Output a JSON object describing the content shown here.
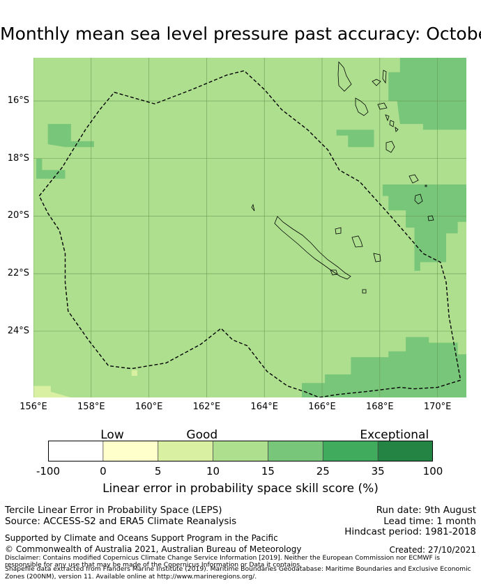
{
  "title": "Monthly mean sea level pressure past accuracy: October",
  "map": {
    "lon_range": [
      156,
      171
    ],
    "lat_range": [
      -26.3,
      -14.5
    ],
    "lat_ticks": [
      {
        "v": -16,
        "label": "16°S"
      },
      {
        "v": -18,
        "label": "18°S"
      },
      {
        "v": -20,
        "label": "20°S"
      },
      {
        "v": -22,
        "label": "22°S"
      },
      {
        "v": -24,
        "label": "24°S"
      }
    ],
    "lon_ticks": [
      {
        "v": 156,
        "label": "156°E"
      },
      {
        "v": 158,
        "label": "158°E"
      },
      {
        "v": 160,
        "label": "160°E"
      },
      {
        "v": 162,
        "label": "162°E"
      },
      {
        "v": 164,
        "label": "164°E"
      },
      {
        "v": 166,
        "label": "166°E"
      },
      {
        "v": 168,
        "label": "168°E"
      },
      {
        "v": 170,
        "label": "170°E"
      }
    ],
    "colors": {
      "background_15_25": "#addf8e",
      "zone_25_35": "#78c679",
      "zone_5_10": "#d9f0a3",
      "gridline": "#6a9a55",
      "coast": "#000000"
    },
    "regions_25_35": [
      [
        [
          168.7,
          -14.5
        ],
        [
          171,
          -14.5
        ],
        [
          171,
          -17.0
        ],
        [
          169.5,
          -17.0
        ],
        [
          169.5,
          -16.8
        ],
        [
          168.7,
          -16.8
        ],
        [
          168.6,
          -16.0
        ],
        [
          168.3,
          -16.0
        ],
        [
          168.3,
          -15.0
        ],
        [
          168.7,
          -15.0
        ]
      ],
      [
        [
          166.5,
          -17.0
        ],
        [
          167.8,
          -17.0
        ],
        [
          167.8,
          -17.6
        ],
        [
          166.9,
          -17.6
        ],
        [
          166.9,
          -17.2
        ],
        [
          166.5,
          -17.2
        ]
      ],
      [
        [
          168.1,
          -18.9
        ],
        [
          171,
          -18.9
        ],
        [
          171,
          -20.2
        ],
        [
          170.7,
          -20.2
        ],
        [
          170.7,
          -20.6
        ],
        [
          170.3,
          -20.6
        ],
        [
          170.3,
          -21.6
        ],
        [
          169.4,
          -21.6
        ],
        [
          169.4,
          -21.9
        ],
        [
          169.2,
          -21.9
        ],
        [
          169.2,
          -20.4
        ],
        [
          168.9,
          -20.4
        ],
        [
          168.9,
          -19.8
        ],
        [
          168.3,
          -19.8
        ],
        [
          168.3,
          -19.3
        ],
        [
          168.1,
          -19.3
        ]
      ],
      [
        [
          167.6,
          -24.9
        ],
        [
          168.3,
          -24.9
        ],
        [
          168.3,
          -24.7
        ],
        [
          168.9,
          -24.7
        ],
        [
          168.9,
          -24.2
        ],
        [
          169.7,
          -24.2
        ],
        [
          169.7,
          -24.4
        ],
        [
          170.7,
          -24.4
        ],
        [
          170.7,
          -24.8
        ],
        [
          171,
          -24.8
        ],
        [
          171,
          -26.3
        ],
        [
          165.3,
          -26.3
        ],
        [
          165.3,
          -25.8
        ],
        [
          166.1,
          -25.8
        ],
        [
          166.1,
          -25.5
        ],
        [
          167.0,
          -25.5
        ],
        [
          167.0,
          -24.9
        ]
      ],
      [
        [
          156.5,
          -16.8
        ],
        [
          157.3,
          -16.8
        ],
        [
          157.3,
          -17.4
        ],
        [
          158.1,
          -17.4
        ],
        [
          158.1,
          -17.6
        ],
        [
          157.1,
          -17.6
        ],
        [
          156.5,
          -17.5
        ]
      ],
      [
        [
          156.1,
          -18.0
        ],
        [
          156.3,
          -18.0
        ],
        [
          156.3,
          -18.4
        ],
        [
          157.1,
          -18.4
        ],
        [
          157.1,
          -18.7
        ],
        [
          156.1,
          -18.7
        ]
      ]
    ],
    "regions_5_10": [
      [
        [
          156,
          -25.9
        ],
        [
          156.6,
          -25.9
        ],
        [
          156.6,
          -26.1
        ],
        [
          157.3,
          -26.3
        ],
        [
          156,
          -26.3
        ]
      ],
      [
        [
          159.4,
          -25.35
        ],
        [
          159.6,
          -25.35
        ],
        [
          159.6,
          -25.55
        ],
        [
          159.4,
          -25.55
        ]
      ]
    ],
    "boundary": [
      [
        156.2,
        -19.3
      ],
      [
        157.0,
        -18.3
      ],
      [
        157.8,
        -17.0
      ],
      [
        158.3,
        -16.3
      ],
      [
        158.8,
        -15.7
      ],
      [
        160.2,
        -16.1
      ],
      [
        161.5,
        -15.6
      ],
      [
        162.7,
        -15.1
      ],
      [
        163.3,
        -14.95
      ],
      [
        164.0,
        -15.6
      ],
      [
        164.6,
        -16.3
      ],
      [
        165.5,
        -17.0
      ],
      [
        166.2,
        -17.7
      ],
      [
        166.6,
        -18.4
      ],
      [
        167.3,
        -18.8
      ],
      [
        168.2,
        -19.8
      ],
      [
        168.9,
        -20.6
      ],
      [
        169.5,
        -21.3
      ],
      [
        170.1,
        -21.6
      ],
      [
        170.3,
        -22.3
      ],
      [
        170.4,
        -23.5
      ],
      [
        170.6,
        -24.6
      ],
      [
        170.8,
        -25.7
      ],
      [
        170.0,
        -25.95
      ],
      [
        169.2,
        -26.0
      ],
      [
        168.7,
        -25.95
      ],
      [
        167.5,
        -26.1
      ],
      [
        166.5,
        -26.2
      ],
      [
        165.9,
        -26.3
      ],
      [
        165.4,
        -26.1
      ],
      [
        164.8,
        -25.9
      ],
      [
        164.1,
        -25.4
      ],
      [
        163.4,
        -24.5
      ],
      [
        162.9,
        -24.3
      ],
      [
        162.5,
        -23.9
      ],
      [
        161.8,
        -24.45
      ],
      [
        160.6,
        -25.1
      ],
      [
        159.4,
        -25.3
      ],
      [
        158.6,
        -25.2
      ],
      [
        157.9,
        -24.3
      ],
      [
        157.2,
        -23.3
      ],
      [
        157.1,
        -22.3
      ],
      [
        157.1,
        -21.3
      ],
      [
        156.9,
        -20.5
      ],
      [
        156.5,
        -19.9
      ],
      [
        156.2,
        -19.3
      ]
    ]
  },
  "colorbar": {
    "categories": [
      {
        "label": "Low",
        "at": 0.5
      },
      {
        "label": "Good",
        "at": 1.2
      },
      {
        "label": "Exceptional",
        "at": 2.7
      }
    ],
    "segments": [
      {
        "from": -100,
        "to": 0,
        "color": "#ffffff"
      },
      {
        "from": 0,
        "to": 5,
        "color": "#ffffcc"
      },
      {
        "from": 5,
        "to": 10,
        "color": "#d9f0a3"
      },
      {
        "from": 10,
        "to": 15,
        "color": "#addf8e"
      },
      {
        "from": 15,
        "to": 25,
        "color": "#78c679"
      },
      {
        "from": 25,
        "to": 35,
        "color": "#41ab5d"
      },
      {
        "from": 35,
        "to": 100,
        "color": "#238443"
      }
    ],
    "ticks": [
      "-100",
      "0",
      "5",
      "10",
      "15",
      "25",
      "35",
      "100"
    ],
    "label": "Linear error in probability space skill score (%)"
  },
  "footer": {
    "line1": "Tercile Linear Error in Probability Space (LEPS)",
    "line2": "Source: ACCESS-S2 and ERA5 Climate Reanalysis",
    "run_date": "Run date: 9th August",
    "lead_time": "Lead time: 1 month",
    "hindcast": "Hindcast period: 1981-2018",
    "support": "Supported by Climate and Oceans Support Program in the Pacific",
    "copyright": "© Commonwealth of Australia 2021, Australian Bureau of Meteorology",
    "created": "Created: 27/10/2021",
    "disclaimer1": "Disclaimer: Contains modified Copernicus Climate Change Service Information [2019]. Neither the European Commission nor ECMWF is",
    "disclaimer2": "responsible for any use that may be made of the Copernicus Information or Data it contains.",
    "shapefile1": "Shapefile data extracted from Flanders Marine Institute (2019). Maritime Boundaries Geodatabase: Maritime Boundaries and Exclusive Economic",
    "shapefile2": "Zones (200NM), version 11. Available online at http://www.marineregions.org/."
  }
}
